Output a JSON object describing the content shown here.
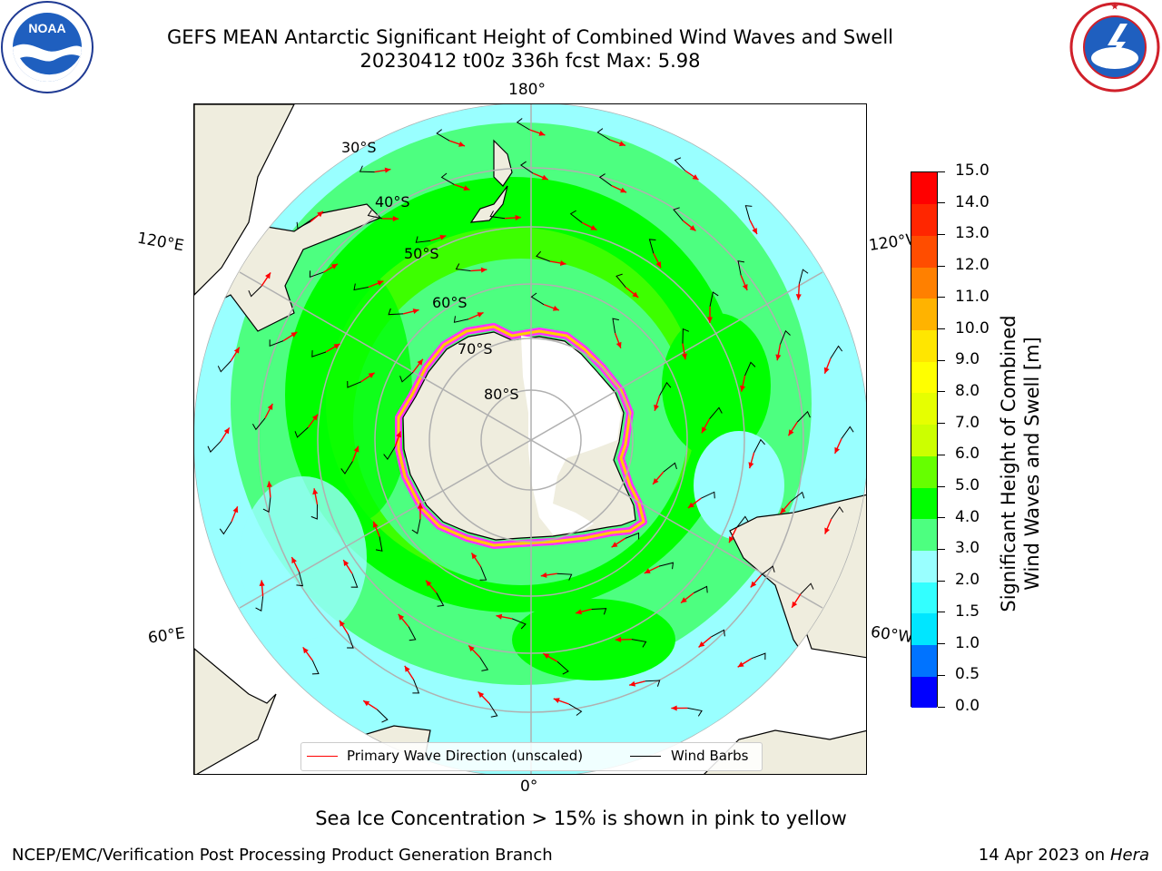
{
  "header": {
    "title_line1": "GEFS MEAN Antarctic Significant Height of Combined Wind Waves and Swell",
    "title_line2": "20230412 t00z 336h fcst   Max: 5.98"
  },
  "logos": {
    "noaa": {
      "text": "NOAA",
      "ring_text": "NATIONAL OCEANIC AND ATMOSPHERIC ADMINISTRATION · U.S. DEPARTMENT OF COMMERCE"
    },
    "nws": {
      "ring_text": "NATIONAL WEATHER SERVICE"
    }
  },
  "map": {
    "longitude_labels": {
      "top": "180°",
      "bottom": "0°",
      "left_upper": "120°E",
      "left_lower": "60°E",
      "right_upper": "120°W",
      "right_lower": "60°W"
    },
    "latitude_labels": [
      "30°S",
      "40°S",
      "50°S",
      "60°S",
      "70°S",
      "80°S"
    ],
    "colors": {
      "land": "#efedde",
      "ice_edge_pink": "#ff33ff",
      "ice_edge_yellow": "#ffcc00",
      "arrow": "#ff0000",
      "barb": "#000000",
      "grid": "#b0b0b0"
    }
  },
  "legend": {
    "primary_wave": "Primary Wave Direction (unscaled)",
    "wind_barbs": "Wind Barbs",
    "primary_wave_color": "#ff0000",
    "wind_barbs_color": "#000000"
  },
  "colorbar": {
    "label_line1": "Significant Height of Combined",
    "label_line2": "Wind Waves and Swell [m]",
    "ticks": [
      "0.0",
      "0.5",
      "1.0",
      "1.5",
      "2.0",
      "3.0",
      "4.0",
      "5.0",
      "6.0",
      "7.0",
      "8.0",
      "9.0",
      "10.0",
      "11.0",
      "12.0",
      "13.0",
      "14.0",
      "15.0"
    ],
    "colors": [
      "#0000ff",
      "#0073ff",
      "#00e6ff",
      "#33ffff",
      "#99ffff",
      "#4dff80",
      "#00ff00",
      "#66ff00",
      "#ccff00",
      "#e6ff00",
      "#ffff00",
      "#ffe600",
      "#ffb300",
      "#ff8000",
      "#ff4d00",
      "#ff2600",
      "#ff0000"
    ]
  },
  "notes": {
    "sea_ice": "Sea Ice Concentration > 15% is shown in pink to yellow"
  },
  "footer": {
    "left": "NCEP/EMC/Verification Post Processing Product Generation Branch",
    "right_prefix": "14 Apr 2023 on ",
    "right_machine": "Hera"
  }
}
